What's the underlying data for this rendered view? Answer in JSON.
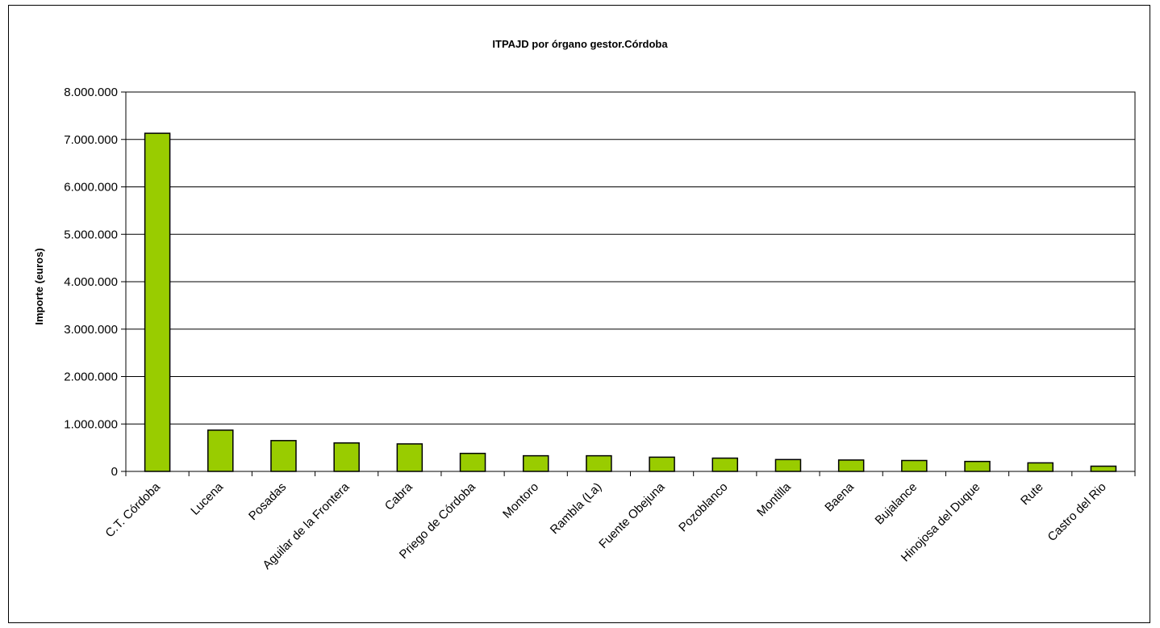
{
  "chart_data": {
    "type": "bar",
    "title": "ITPAJD por órgano gestor.Córdoba",
    "xlabel": "",
    "ylabel": "Importe (euros)",
    "ylim": [
      0,
      8000000
    ],
    "yticks": [
      0,
      1000000,
      2000000,
      3000000,
      4000000,
      5000000,
      6000000,
      7000000,
      8000000
    ],
    "ytick_labels": [
      "0",
      "1.000.000",
      "2.000.000",
      "3.000.000",
      "4.000.000",
      "5.000.000",
      "6.000.000",
      "7.000.000",
      "8.000.000"
    ],
    "grid": "horizontal",
    "legend": "none",
    "bar_color": "#99cc00",
    "categories": [
      "C.T. Córdoba",
      "Lucena",
      "Posadas",
      "Aguilar de la Frontera",
      "Cabra",
      "Priego de Córdoba",
      "Montoro",
      "Rambla (La)",
      "Fuente Obejuna",
      "Pozoblanco",
      "Montilla",
      "Baena",
      "Bujalance",
      "Hinojosa del Duque",
      "Rute",
      "Castro del Rio"
    ],
    "values": [
      7130000,
      870000,
      650000,
      600000,
      580000,
      380000,
      330000,
      330000,
      300000,
      280000,
      250000,
      240000,
      230000,
      210000,
      180000,
      110000
    ]
  }
}
